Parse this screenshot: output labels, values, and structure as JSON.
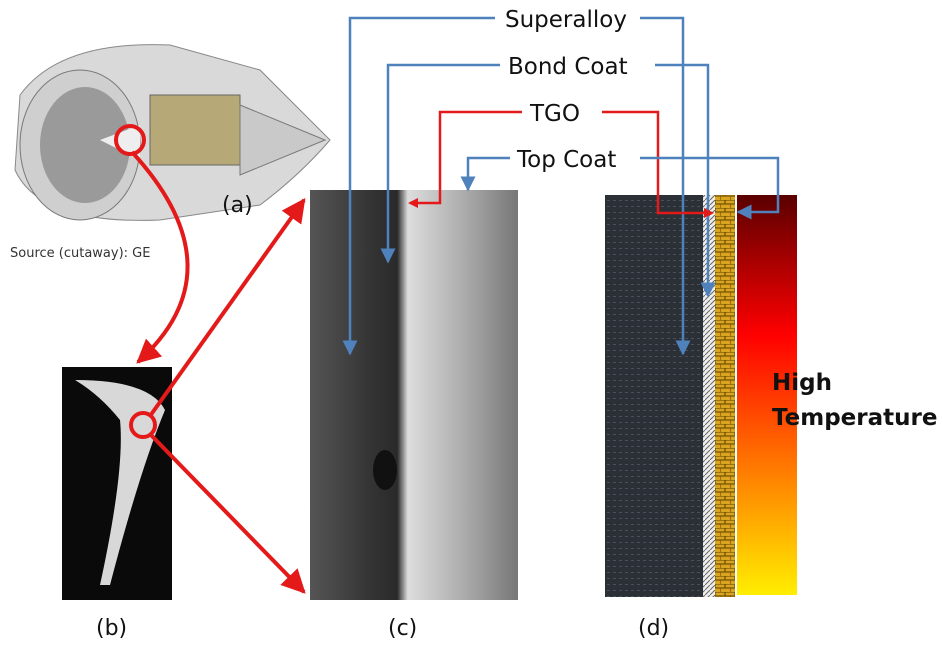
{
  "labels": {
    "superalloy": "Superalloy",
    "bond_coat": "Bond Coat",
    "tgo": "TGO",
    "top_coat": "Top Coat"
  },
  "panels": {
    "a": "(a)",
    "b": "(b)",
    "c": "(c)",
    "d": "(d)"
  },
  "source": "Source (cutaway): GE",
  "high_temperature": [
    "High",
    "Temperature"
  ]
}
